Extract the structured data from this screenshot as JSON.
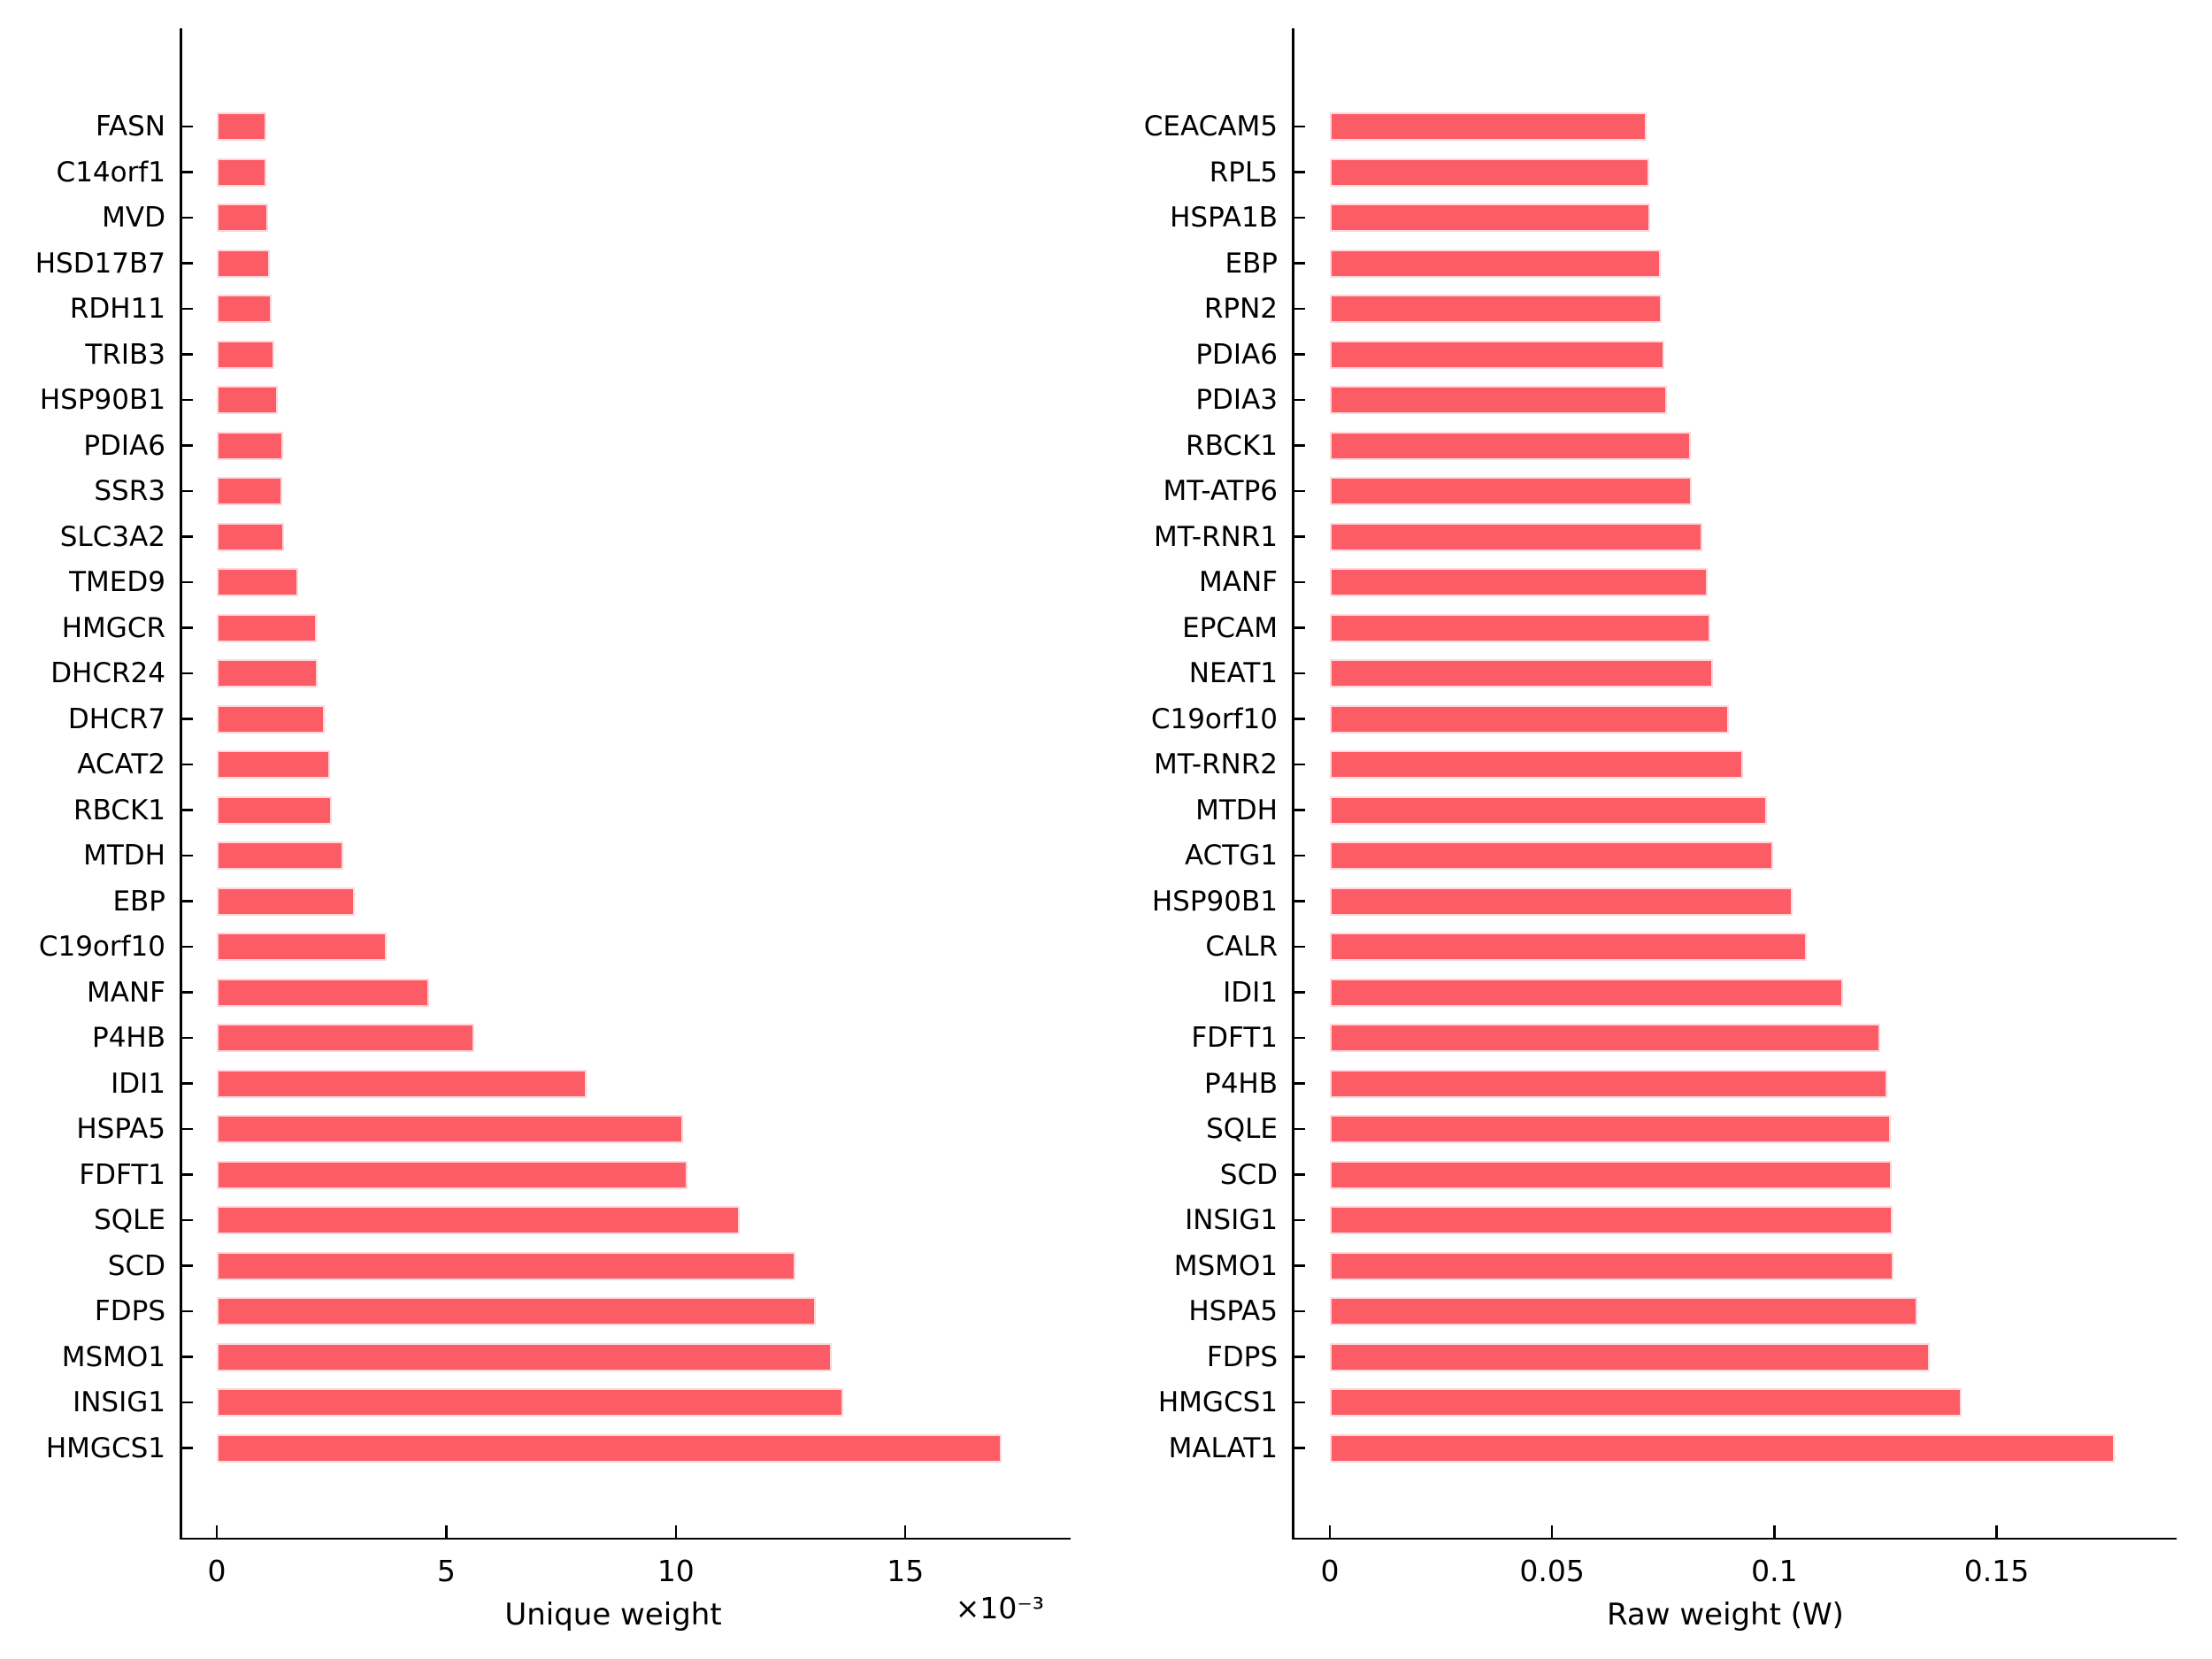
{
  "chart_data": [
    {
      "type": "bar",
      "orientation": "horizontal",
      "xlabel": "Unique weight",
      "x_scale_label": "×10⁻³",
      "values_scale_note": "values are in units of 10^-3",
      "xtick_values": [
        0,
        5,
        10,
        15
      ],
      "xtick_labels": [
        "0",
        "5",
        "10",
        "15"
      ],
      "xlim": [
        0,
        18.6
      ],
      "grid": "off",
      "bar_color": "#FC5C65",
      "bar_edge_color": "#FFD7DA",
      "categories": [
        "FASN",
        "C14orf1",
        "MVD",
        "HSD17B7",
        "RDH11",
        "TRIB3",
        "HSP90B1",
        "PDIA6",
        "SSR3",
        "SLC3A2",
        "TMED9",
        "HMGCR",
        "DHCR24",
        "DHCR7",
        "ACAT2",
        "RBCK1",
        "MTDH",
        "EBP",
        "C19orf10",
        "MANF",
        "P4HB",
        "IDI1",
        "HSPA5",
        "FDFT1",
        "SQLE",
        "SCD",
        "FDPS",
        "MSMO1",
        "INSIG1",
        "HMGCS1"
      ],
      "values": [
        1.07,
        1.08,
        1.12,
        1.15,
        1.19,
        1.25,
        1.33,
        1.44,
        1.43,
        1.46,
        1.77,
        2.17,
        2.2,
        2.35,
        2.47,
        2.5,
        2.75,
        3.01,
        3.7,
        4.62,
        5.61,
        8.05,
        10.15,
        10.25,
        11.4,
        12.6,
        13.05,
        13.4,
        13.65,
        17.1
      ]
    },
    {
      "type": "bar",
      "orientation": "horizontal",
      "xlabel": "Raw weight (W)",
      "x_scale_label": "",
      "xtick_values": [
        0,
        0.05,
        0.1,
        0.15
      ],
      "xtick_labels": [
        "0",
        "0.05",
        "0.1",
        "0.15"
      ],
      "xlim": [
        0,
        0.1905
      ],
      "grid": "off",
      "bar_color": "#FC5C65",
      "bar_edge_color": "#FFD7DA",
      "categories": [
        "CEACAM5",
        "RPL5",
        "HSPA1B",
        "EBP",
        "RPN2",
        "PDIA6",
        "PDIA3",
        "RBCK1",
        "MT-ATP6",
        "MT-RNR1",
        "MANF",
        "EPCAM",
        "NEAT1",
        "C19orf10",
        "MT-RNR2",
        "MTDH",
        "ACTG1",
        "HSP90B1",
        "CALR",
        "IDI1",
        "FDFT1",
        "P4HB",
        "SQLE",
        "SCD",
        "INSIG1",
        "MSMO1",
        "HSPA5",
        "FDPS",
        "HMGCS1",
        "MALAT1"
      ],
      "values": [
        0.0712,
        0.0718,
        0.072,
        0.0745,
        0.0747,
        0.0752,
        0.0758,
        0.0812,
        0.0815,
        0.0839,
        0.0849,
        0.0855,
        0.0862,
        0.0898,
        0.093,
        0.0984,
        0.0997,
        0.1042,
        0.1072,
        0.1155,
        0.1238,
        0.1255,
        0.1262,
        0.1264,
        0.1266,
        0.1268,
        0.1321,
        0.135,
        0.1422,
        0.1765
      ]
    }
  ]
}
